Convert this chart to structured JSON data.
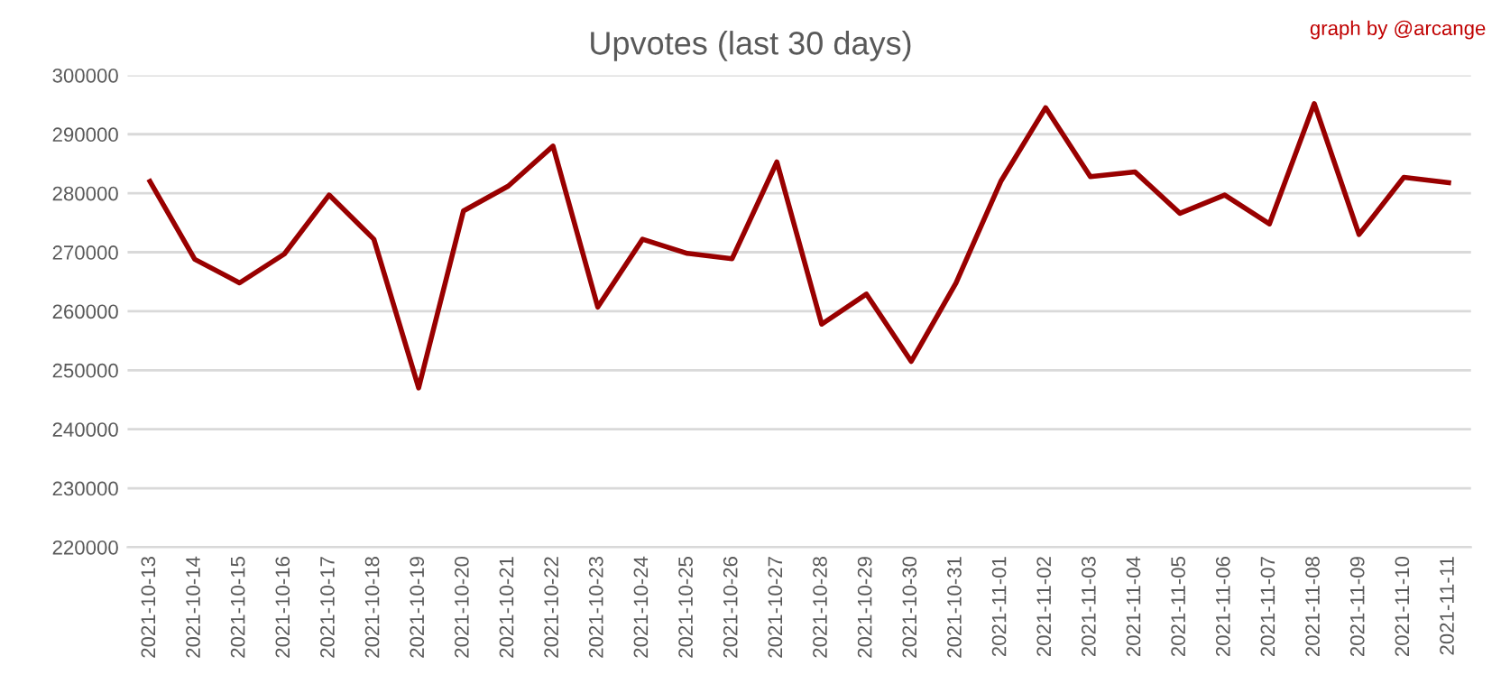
{
  "chart_data": {
    "type": "line",
    "title": "Upvotes (last 30 days)",
    "annotations": [
      "graph by @arcange"
    ],
    "categories": [
      "2021-10-13",
      "2021-10-14",
      "2021-10-15",
      "2021-10-16",
      "2021-10-17",
      "2021-10-18",
      "2021-10-19",
      "2021-10-20",
      "2021-10-21",
      "2021-10-22",
      "2021-10-23",
      "2021-10-24",
      "2021-10-25",
      "2021-10-26",
      "2021-10-27",
      "2021-10-28",
      "2021-10-29",
      "2021-10-30",
      "2021-10-31",
      "2021-11-01",
      "2021-11-02",
      "2021-11-03",
      "2021-11-04",
      "2021-11-05",
      "2021-11-06",
      "2021-11-07",
      "2021-11-08",
      "2021-11-09",
      "2021-11-10",
      "2021-11-11"
    ],
    "series": [
      {
        "color": "#990000",
        "values": [
          282000,
          268800,
          264800,
          269700,
          279700,
          272200,
          247000,
          277000,
          281200,
          288000,
          260700,
          272200,
          269800,
          268900,
          285300,
          257800,
          262900,
          251500,
          264800,
          282000,
          294500,
          282800,
          283600,
          276600,
          279700,
          274800,
          295200,
          273000,
          282700,
          281800
        ]
      }
    ],
    "ylim": [
      220000,
      300000
    ],
    "yticks": [
      220000,
      230000,
      240000,
      250000,
      260000,
      270000,
      280000,
      290000,
      300000
    ],
    "grid": "y",
    "legend": false,
    "marker": "none",
    "line_style": "solid"
  }
}
